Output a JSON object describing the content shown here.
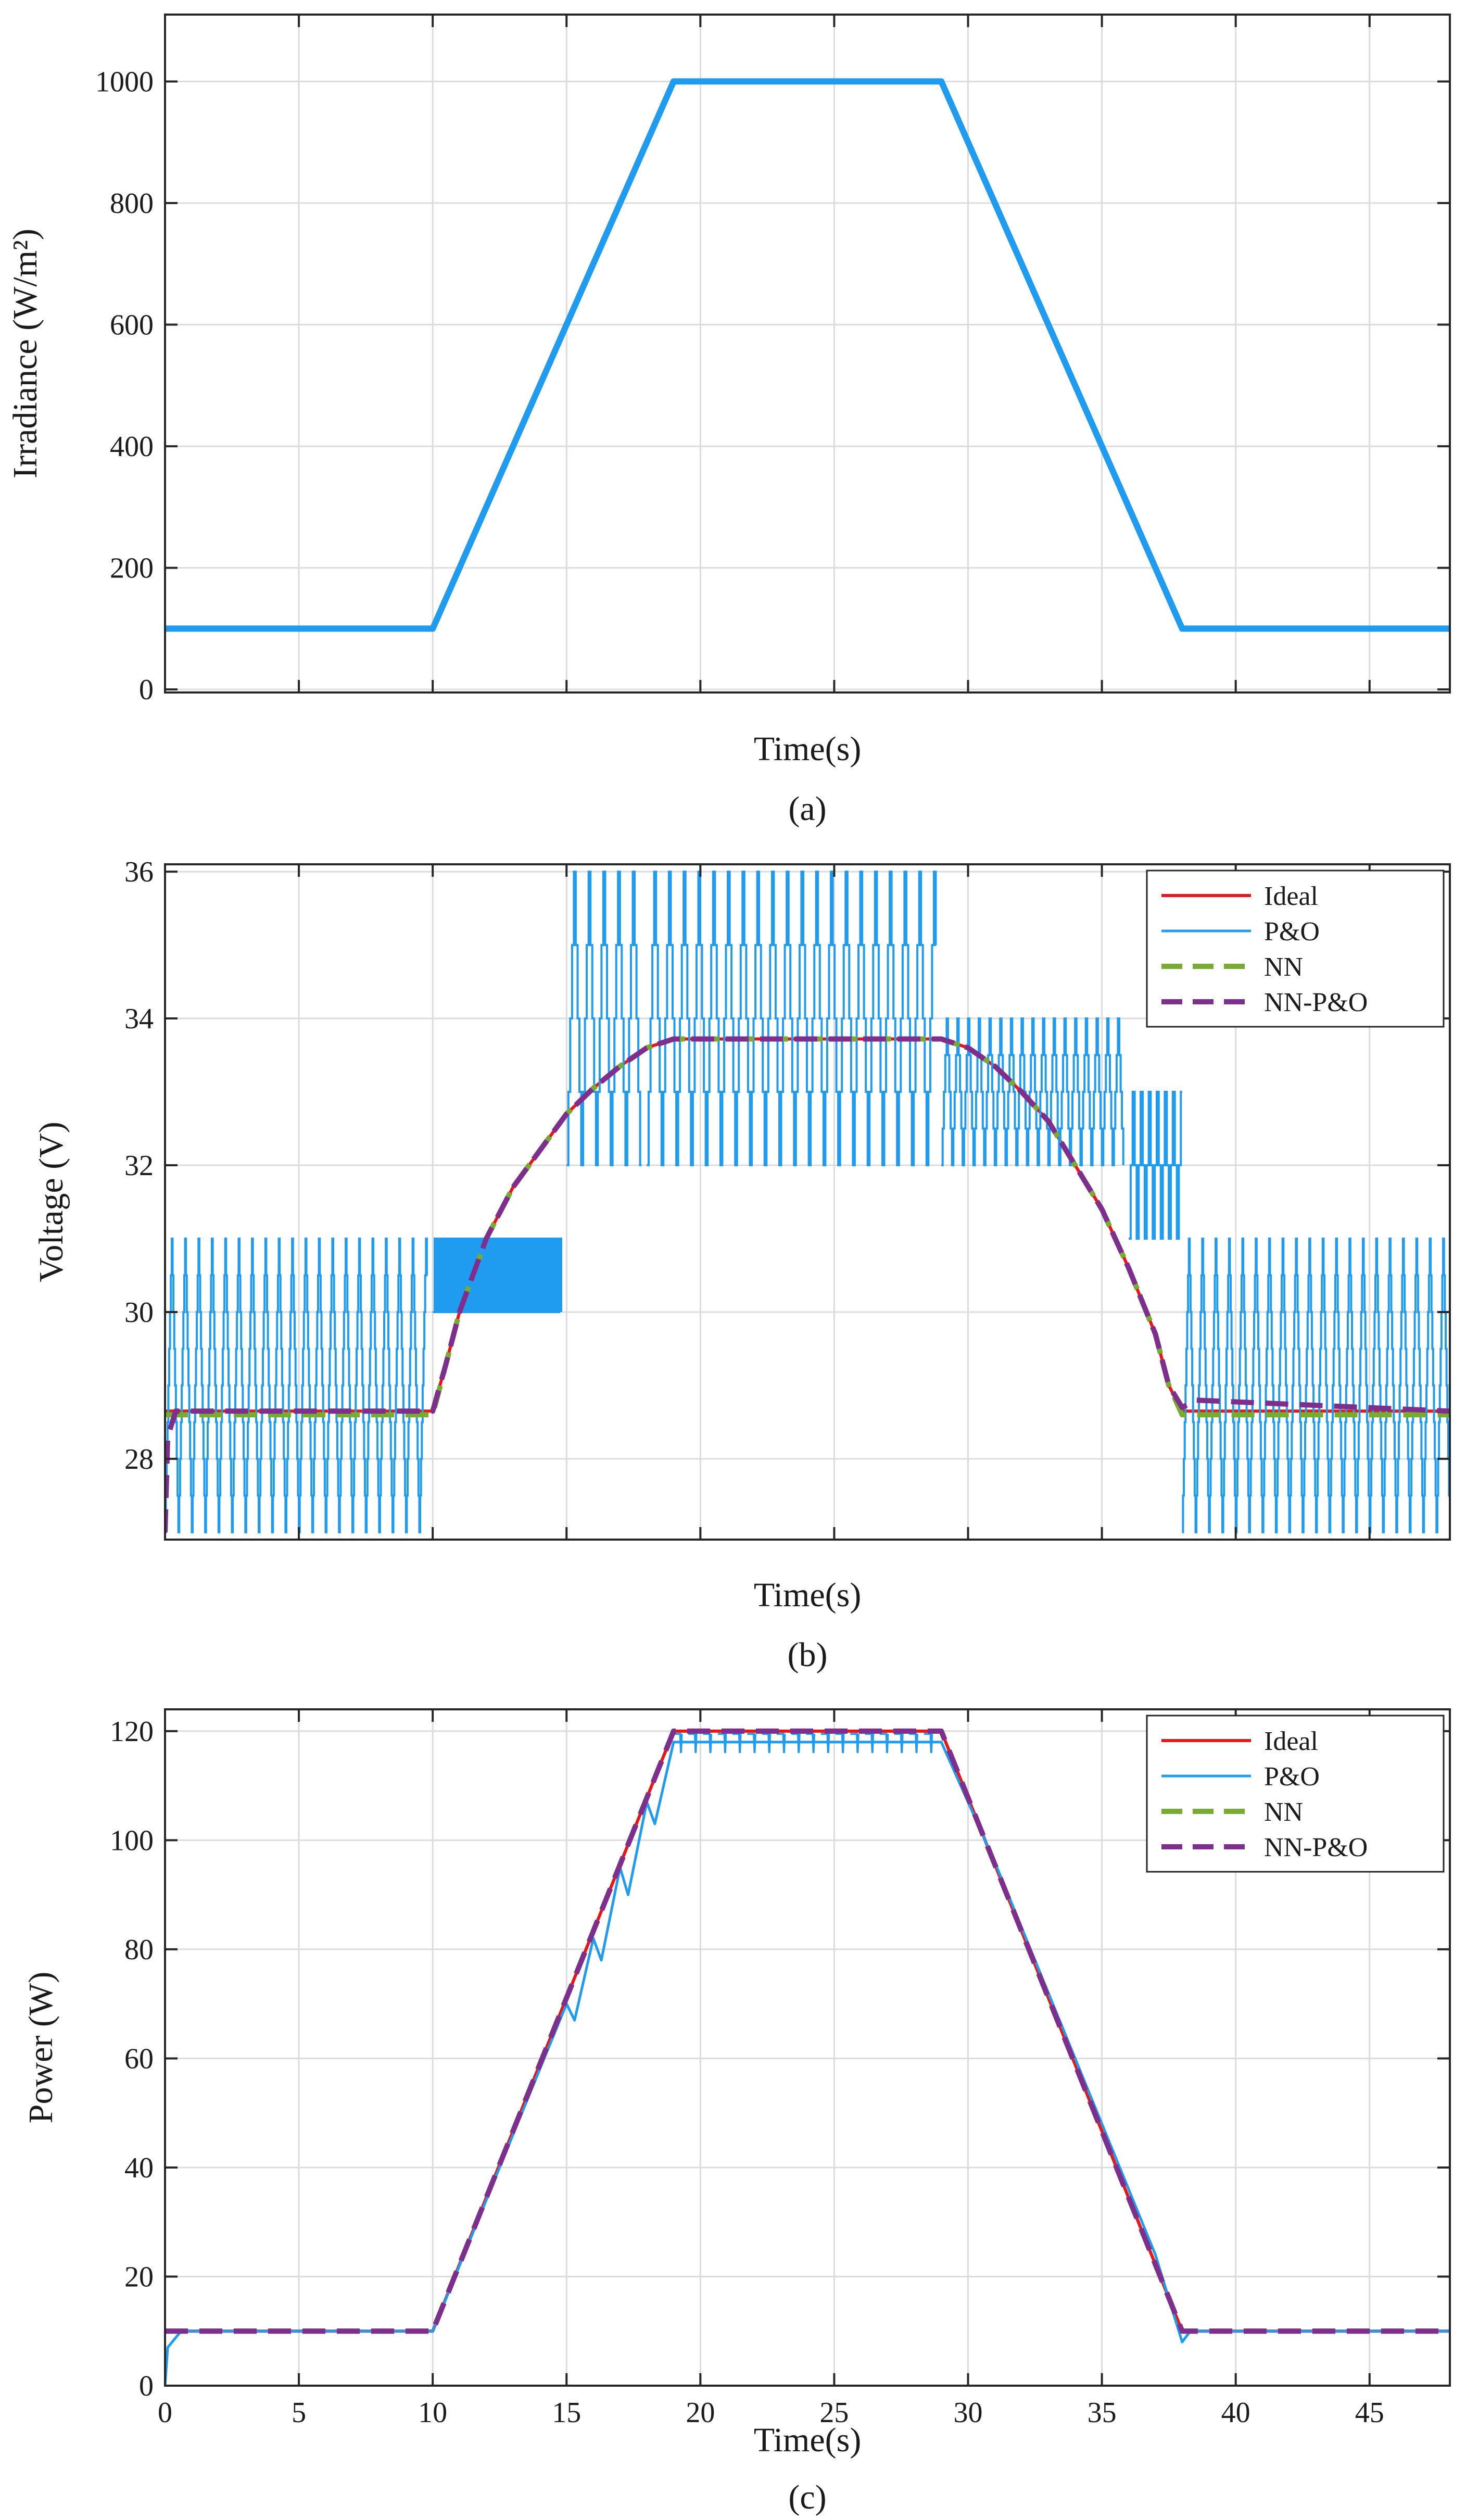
{
  "chart_data": [
    {
      "id": "a",
      "type": "line",
      "caption": "(a)",
      "xlabel": "Time(s)",
      "ylabel": "Irradiance (W/m²)",
      "xlim": [
        0,
        48
      ],
      "ylim": [
        -5,
        1110
      ],
      "xticks": [
        0,
        5,
        10,
        15,
        20,
        25,
        30,
        35,
        40,
        45
      ],
      "show_x_tick_labels": false,
      "yticks": [
        0,
        200,
        400,
        600,
        800,
        1000
      ],
      "ytick_labels": [
        "0",
        "200",
        "400",
        "600",
        "800",
        "1000"
      ],
      "grid": true,
      "legend": null,
      "series": [
        {
          "name": "Irradiance",
          "color": "#1f9bf0",
          "style": "solid",
          "x": [
            0,
            10,
            19,
            29,
            38,
            48
          ],
          "y": [
            100,
            100,
            1000,
            1000,
            100,
            100
          ]
        }
      ]
    },
    {
      "id": "b",
      "type": "line",
      "caption": "(b)",
      "xlabel": "Time(s)",
      "ylabel": "Voltage (V)",
      "xlim": [
        0,
        48
      ],
      "ylim": [
        26.9,
        36.1
      ],
      "xticks": [
        0,
        5,
        10,
        15,
        20,
        25,
        30,
        35,
        40,
        45
      ],
      "show_x_tick_labels": false,
      "yticks": [
        28,
        30,
        32,
        34,
        36
      ],
      "ytick_labels": [
        "28",
        "30",
        "32",
        "34",
        "36"
      ],
      "grid": true,
      "legend": {
        "position": "top-right",
        "entries": [
          "Ideal",
          "P&O",
          "NN",
          "NN-P&O"
        ]
      },
      "series": [
        {
          "name": "Ideal",
          "color": "#e8161b",
          "style": "solid",
          "x": [
            0,
            10,
            10.5,
            11,
            12,
            13,
            14,
            15,
            16,
            17,
            18,
            19,
            29,
            30,
            31,
            32,
            33,
            34,
            35,
            36,
            37,
            37.5,
            38,
            48
          ],
          "y": [
            28.65,
            28.65,
            29.3,
            30.0,
            31.0,
            31.7,
            32.2,
            32.7,
            33.05,
            33.35,
            33.6,
            33.72,
            33.72,
            33.6,
            33.35,
            33.0,
            32.6,
            32.0,
            31.4,
            30.6,
            29.7,
            29.0,
            28.65,
            28.65
          ]
        },
        {
          "name": "P&O",
          "color": "#1f9bf0",
          "style": "solid",
          "segments": [
            {
              "t0": 0.0,
              "t1": 9.8,
              "levels": [
                27,
                27.5,
                28,
                28.5,
                29,
                29.5,
                30,
                30.5,
                31
              ],
              "period": 0.5
            },
            {
              "t0": 10.0,
              "t1": 14.8,
              "levels": [
                30,
                31
              ],
              "period": 0.15
            },
            {
              "t0": 15.0,
              "t1": 17.8,
              "levels": [
                32,
                33,
                34,
                35,
                36
              ],
              "period": 0.55
            },
            {
              "t0": 18.0,
              "t1": 28.8,
              "levels": [
                32,
                33,
                34,
                35,
                36
              ],
              "period": 0.55
            },
            {
              "t0": 29.0,
              "t1": 35.8,
              "levels": [
                32,
                32.5,
                33,
                33.5,
                34
              ],
              "period": 0.4
            },
            {
              "t0": 36.0,
              "t1": 38.0,
              "levels": [
                31,
                32,
                33
              ],
              "period": 0.3
            },
            {
              "t0": 38.0,
              "t1": 48.0,
              "levels": [
                27,
                27.5,
                28,
                28.5,
                29,
                29.5,
                30,
                30.5,
                31
              ],
              "period": 0.5
            }
          ]
        },
        {
          "name": "NN",
          "color": "#77ac30",
          "style": "dashed",
          "x": [
            0,
            10,
            10.5,
            11,
            12,
            13,
            14,
            15,
            16,
            17,
            18,
            19,
            29,
            30,
            31,
            32,
            33,
            34,
            35,
            36,
            37,
            37.5,
            38,
            48
          ],
          "y": [
            28.6,
            28.6,
            29.3,
            30.0,
            31.0,
            31.7,
            32.2,
            32.7,
            33.05,
            33.35,
            33.6,
            33.72,
            33.72,
            33.6,
            33.35,
            33.0,
            32.6,
            32.0,
            31.4,
            30.6,
            29.7,
            29.0,
            28.6,
            28.6
          ]
        },
        {
          "name": "NN-P&O",
          "color": "#7e2f8e",
          "style": "dashed",
          "x": [
            0,
            0.1,
            0.4,
            10,
            10.5,
            11,
            12,
            13,
            14,
            15,
            16,
            17,
            18,
            19,
            29,
            30,
            31,
            32,
            33,
            34,
            35,
            36,
            37,
            37.5,
            38,
            38.5,
            48
          ],
          "y": [
            27.0,
            28.3,
            28.65,
            28.65,
            29.3,
            30.0,
            31.0,
            31.7,
            32.2,
            32.7,
            33.05,
            33.35,
            33.6,
            33.72,
            33.72,
            33.6,
            33.35,
            33.0,
            32.6,
            32.0,
            31.4,
            30.6,
            29.7,
            29.0,
            28.7,
            28.8,
            28.65
          ]
        }
      ]
    },
    {
      "id": "c",
      "type": "line",
      "caption": "(c)",
      "xlabel": "Time(s)",
      "ylabel": "Power (W)",
      "xlim": [
        0,
        48
      ],
      "ylim": [
        0,
        124
      ],
      "xticks": [
        0,
        5,
        10,
        15,
        20,
        25,
        30,
        35,
        40,
        45
      ],
      "show_x_tick_labels": true,
      "xtick_labels": [
        "0",
        "5",
        "10",
        "15",
        "20",
        "25",
        "30",
        "35",
        "40",
        "45"
      ],
      "yticks": [
        0,
        20,
        40,
        60,
        80,
        100,
        120
      ],
      "ytick_labels": [
        "0",
        "20",
        "40",
        "60",
        "80",
        "100",
        "120"
      ],
      "grid": true,
      "legend": {
        "position": "top-right",
        "entries": [
          "Ideal",
          "P&O",
          "NN",
          "NN-P&O"
        ]
      },
      "series": [
        {
          "name": "Ideal",
          "color": "#e8161b",
          "style": "solid",
          "x": [
            0,
            10,
            19,
            29,
            38,
            48
          ],
          "y": [
            10,
            10,
            120,
            120,
            10,
            10
          ]
        },
        {
          "name": "P&O",
          "color": "#1f9bf0",
          "style": "solid",
          "x": [
            0,
            0.1,
            0.6,
            10,
            12,
            14,
            15,
            15.3,
            16,
            16.3,
            17,
            17.3,
            18,
            18.3,
            19,
            29,
            31,
            33,
            35,
            37,
            38,
            38.3,
            48
          ],
          "y": [
            0,
            7,
            10,
            10,
            34,
            58,
            70,
            67,
            82,
            78,
            95,
            90,
            107,
            103,
            118,
            118,
            96,
            72,
            48,
            24,
            8,
            10,
            10
          ],
          "ripple": {
            "t0": 19.0,
            "t1": 28.6,
            "top": 119.5,
            "bottom": 116,
            "period": 0.55
          }
        },
        {
          "name": "NN",
          "color": "#77ac30",
          "style": "dashed",
          "x": [
            0,
            10,
            19,
            29,
            38,
            48
          ],
          "y": [
            10,
            10,
            120,
            120,
            10,
            10
          ]
        },
        {
          "name": "NN-P&O",
          "color": "#7e2f8e",
          "style": "dashed",
          "x": [
            0,
            10,
            19,
            29,
            38,
            48
          ],
          "y": [
            10,
            10,
            120,
            120,
            10,
            10
          ]
        }
      ]
    }
  ]
}
